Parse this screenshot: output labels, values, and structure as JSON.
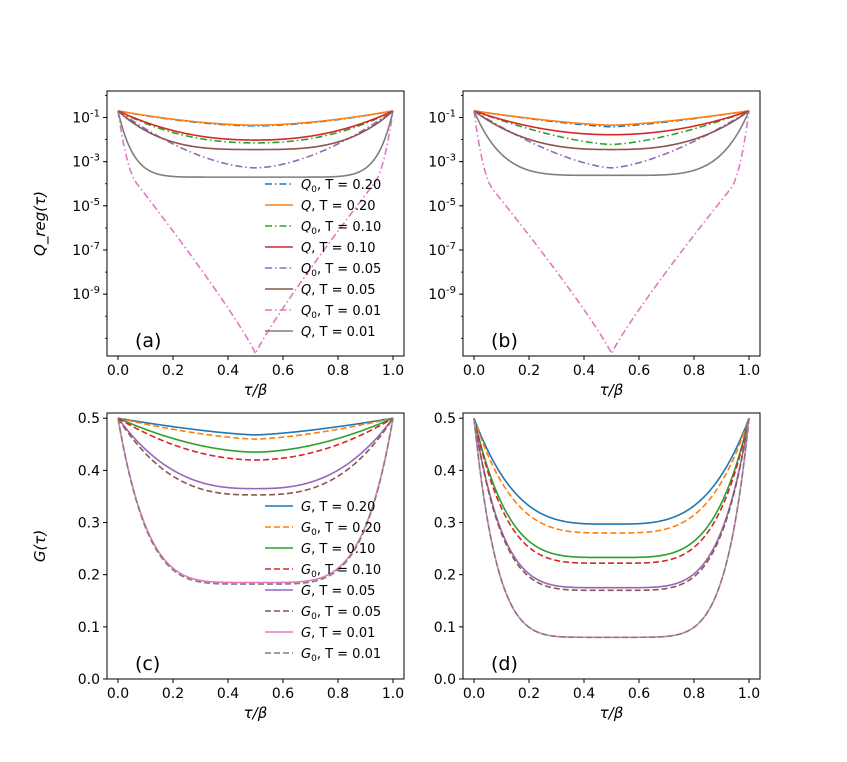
{
  "chart_data": [
    {
      "id": "a",
      "type": "line",
      "panel_label": "(a)",
      "xlabel": "τ/β",
      "ylabel": "Q_reg(τ)",
      "yscale": "log",
      "xlim": [
        -0.04,
        1.04
      ],
      "ylim_exp": [
        -11.8,
        0.2
      ],
      "x_ticks": [
        "0.0",
        "0.2",
        "0.4",
        "0.6",
        "0.8",
        "1.0"
      ],
      "y_ticks": [
        {
          "exp": -1,
          "label": "-1"
        },
        {
          "exp": -3,
          "label": "-3"
        },
        {
          "exp": -5,
          "label": "-5"
        },
        {
          "exp": -7,
          "label": "-7"
        },
        {
          "exp": -9,
          "label": "-9"
        }
      ],
      "legend": [
        {
          "series": 0,
          "sym": "Q",
          "sub": "0",
          "T": "T = 0.20"
        },
        {
          "series": 1,
          "sym": "Q",
          "sub": "",
          "T": "T = 0.20"
        },
        {
          "series": 2,
          "sym": "Q",
          "sub": "0",
          "T": "T = 0.10"
        },
        {
          "series": 3,
          "sym": "Q",
          "sub": "",
          "T": "T = 0.10"
        },
        {
          "series": 4,
          "sym": "Q",
          "sub": "0",
          "T": "T = 0.05"
        },
        {
          "series": 5,
          "sym": "Q",
          "sub": "",
          "T": "T = 0.05"
        },
        {
          "series": 6,
          "sym": "Q",
          "sub": "0",
          "T": "T = 0.01"
        },
        {
          "series": 7,
          "sym": "Q",
          "sub": "",
          "T": "T = 0.01"
        }
      ],
      "series": [
        {
          "name": "Q0, T=0.20",
          "color": "#1f77b4",
          "style": "dashdot",
          "model": "q",
          "ends": -0.7,
          "mid": -1.38,
          "p": 1.7
        },
        {
          "name": "Q, T=0.20",
          "color": "#ff7f0e",
          "style": "solid",
          "model": "q",
          "ends": -0.7,
          "mid": -1.35,
          "p": 1.7
        },
        {
          "name": "Q0, T=0.10",
          "color": "#2ca02c",
          "style": "dashdot",
          "model": "q",
          "ends": -0.7,
          "mid": -2.15,
          "p": 2.2
        },
        {
          "name": "Q, T=0.10",
          "color": "#d62728",
          "style": "solid",
          "model": "q",
          "ends": -0.7,
          "mid": -2.02,
          "p": 2.2
        },
        {
          "name": "Q0, T=0.05",
          "color": "#9467bd",
          "style": "dashdot",
          "model": "q",
          "ends": -0.7,
          "mid": -3.28,
          "p": 1.7
        },
        {
          "name": "Q, T=0.05",
          "color": "#8c564b",
          "style": "solid",
          "model": "q",
          "ends": -0.7,
          "mid": -2.45,
          "p": 3.2
        },
        {
          "name": "Q0, T=0.01",
          "color": "#e377c2",
          "style": "dashdot",
          "model": "v",
          "ends": -0.7,
          "mid": -11.7,
          "knee": -2.9,
          "shape": 0.9
        },
        {
          "name": "Q, T=0.01",
          "color": "#7f7f7f",
          "style": "solid",
          "model": "q",
          "ends": -0.7,
          "mid": -3.7,
          "p": 9
        }
      ]
    },
    {
      "id": "b",
      "type": "line",
      "panel_label": "(b)",
      "xlabel": "τ/β",
      "ylabel": "",
      "yscale": "log",
      "xlim": [
        -0.04,
        1.04
      ],
      "ylim_exp": [
        -11.8,
        0.2
      ],
      "x_ticks": [
        "0.0",
        "0.2",
        "0.4",
        "0.6",
        "0.8",
        "1.0"
      ],
      "y_ticks": [
        {
          "exp": -1,
          "label": "-1"
        },
        {
          "exp": -3,
          "label": "-3"
        },
        {
          "exp": -5,
          "label": "-5"
        },
        {
          "exp": -7,
          "label": "-7"
        },
        {
          "exp": -9,
          "label": "-9"
        }
      ],
      "legend": [],
      "series": [
        {
          "name": "Q0, T=0.20",
          "color": "#1f77b4",
          "style": "dashdot",
          "model": "q",
          "ends": -0.7,
          "mid": -1.42,
          "p": 1.3
        },
        {
          "name": "Q, T=0.20",
          "color": "#ff7f0e",
          "style": "solid",
          "model": "q",
          "ends": -0.7,
          "mid": -1.35,
          "p": 1.4
        },
        {
          "name": "Q0, T=0.10",
          "color": "#2ca02c",
          "style": "dashdot",
          "model": "q",
          "ends": -0.7,
          "mid": -2.22,
          "p": 1.5
        },
        {
          "name": "Q, T=0.10",
          "color": "#d62728",
          "style": "solid",
          "model": "q",
          "ends": -0.7,
          "mid": -1.78,
          "p": 2.0
        },
        {
          "name": "Q0, T=0.05",
          "color": "#9467bd",
          "style": "dashdot",
          "model": "q",
          "ends": -0.7,
          "mid": -3.28,
          "p": 1.5
        },
        {
          "name": "Q, T=0.05",
          "color": "#8c564b",
          "style": "solid",
          "model": "q",
          "ends": -0.7,
          "mid": -2.45,
          "p": 2.6
        },
        {
          "name": "Q0, T=0.01",
          "color": "#e377c2",
          "style": "dashdot",
          "model": "v",
          "ends": -0.7,
          "mid": -11.7,
          "knee": -3.2,
          "shape": 0.9
        },
        {
          "name": "Q, T=0.01",
          "color": "#7f7f7f",
          "style": "solid",
          "model": "q",
          "ends": -0.7,
          "mid": -3.62,
          "p": 5
        }
      ]
    },
    {
      "id": "c",
      "type": "line",
      "panel_label": "(c)",
      "xlabel": "τ/β",
      "ylabel": "G(τ)",
      "yscale": "linear",
      "xlim": [
        -0.04,
        1.04
      ],
      "ylim": [
        0.0,
        0.51
      ],
      "x_ticks": [
        "0.0",
        "0.2",
        "0.4",
        "0.6",
        "0.8",
        "1.0"
      ],
      "y_ticks": [
        "0.0",
        "0.1",
        "0.2",
        "0.3",
        "0.4",
        "0.5"
      ],
      "legend": [
        {
          "series": 0,
          "sym": "G",
          "sub": "",
          "T": "T = 0.20"
        },
        {
          "series": 1,
          "sym": "G",
          "sub": "0",
          "T": "T = 0.20"
        },
        {
          "series": 2,
          "sym": "G",
          "sub": "",
          "T": "T = 0.10"
        },
        {
          "series": 3,
          "sym": "G",
          "sub": "0",
          "T": "T = 0.10"
        },
        {
          "series": 4,
          "sym": "G",
          "sub": "",
          "T": "T = 0.05"
        },
        {
          "series": 5,
          "sym": "G",
          "sub": "0",
          "T": "T = 0.05"
        },
        {
          "series": 6,
          "sym": "G",
          "sub": "",
          "T": "T = 0.01"
        },
        {
          "series": 7,
          "sym": "G",
          "sub": "0",
          "T": "T = 0.01"
        }
      ],
      "series": [
        {
          "name": "G, T=0.20",
          "color": "#1f77b4",
          "style": "solid",
          "model": "g",
          "min": 0.468
        },
        {
          "name": "G0, T=0.20",
          "color": "#ff7f0e",
          "style": "dashed",
          "model": "g",
          "min": 0.46
        },
        {
          "name": "G, T=0.10",
          "color": "#2ca02c",
          "style": "solid",
          "model": "g",
          "min": 0.435
        },
        {
          "name": "G0, T=0.10",
          "color": "#d62728",
          "style": "dashed",
          "model": "g",
          "min": 0.42
        },
        {
          "name": "G, T=0.05",
          "color": "#9467bd",
          "style": "solid",
          "model": "g",
          "min": 0.365
        },
        {
          "name": "G0, T=0.05",
          "color": "#8c564b",
          "style": "dashed",
          "model": "g",
          "min": 0.353
        },
        {
          "name": "G, T=0.01",
          "color": "#e377c2",
          "style": "solid",
          "model": "g",
          "min": 0.185
        },
        {
          "name": "G0, T=0.01",
          "color": "#7f7f7f",
          "style": "dashed",
          "model": "g",
          "min": 0.182
        }
      ]
    },
    {
      "id": "d",
      "type": "line",
      "panel_label": "(d)",
      "xlabel": "τ/β",
      "ylabel": "",
      "yscale": "linear",
      "xlim": [
        -0.04,
        1.04
      ],
      "ylim": [
        0.0,
        0.51
      ],
      "x_ticks": [
        "0.0",
        "0.2",
        "0.4",
        "0.6",
        "0.8",
        "1.0"
      ],
      "y_ticks": [
        "0.0",
        "0.1",
        "0.2",
        "0.3",
        "0.4",
        "0.5"
      ],
      "legend": [],
      "series": [
        {
          "name": "G, T=0.20",
          "color": "#1f77b4",
          "style": "solid",
          "model": "g",
          "min": 0.297
        },
        {
          "name": "G0, T=0.20",
          "color": "#ff7f0e",
          "style": "dashed",
          "model": "g",
          "min": 0.28
        },
        {
          "name": "G, T=0.10",
          "color": "#2ca02c",
          "style": "solid",
          "model": "g",
          "min": 0.233
        },
        {
          "name": "G0, T=0.10",
          "color": "#d62728",
          "style": "dashed",
          "model": "g",
          "min": 0.222
        },
        {
          "name": "G, T=0.05",
          "color": "#9467bd",
          "style": "solid",
          "model": "g",
          "min": 0.175
        },
        {
          "name": "G0, T=0.05",
          "color": "#8c564b",
          "style": "dashed",
          "model": "g",
          "min": 0.17
        },
        {
          "name": "G, T=0.01",
          "color": "#e377c2",
          "style": "solid",
          "model": "g",
          "min": 0.08
        },
        {
          "name": "G0, T=0.01",
          "color": "#7f7f7f",
          "style": "dashed",
          "model": "g",
          "min": 0.08
        }
      ]
    }
  ]
}
